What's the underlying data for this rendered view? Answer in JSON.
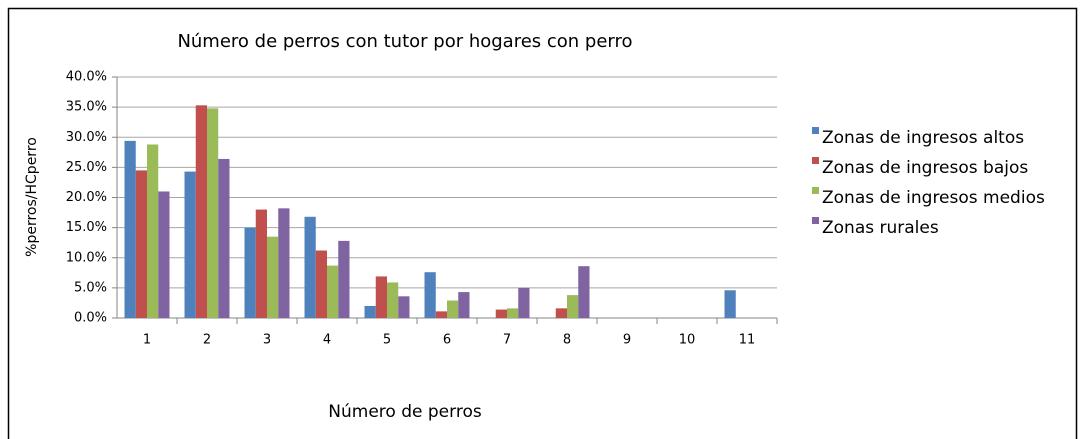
{
  "chart_data": {
    "type": "bar",
    "title": "Número de perros con tutor por hogares con perro",
    "x_label": "Número de perros",
    "y_label": "%perros/HCperro",
    "categories": [
      "1",
      "2",
      "3",
      "4",
      "5",
      "6",
      "7",
      "8",
      "9",
      "10",
      "11"
    ],
    "series": [
      {
        "name": "Zonas de ingresos altos",
        "color": "#4f81bd",
        "values": [
          29.4,
          24.3,
          15.0,
          16.8,
          2.0,
          7.6,
          0,
          0,
          0,
          0,
          4.6
        ]
      },
      {
        "name": "Zonas de ingresos bajos",
        "color": "#c0504d",
        "values": [
          24.5,
          35.3,
          18.0,
          11.2,
          6.9,
          1.1,
          1.4,
          1.6,
          0,
          0,
          0
        ]
      },
      {
        "name": "Zonas de ingresos medios",
        "color": "#9bbb59",
        "values": [
          28.8,
          34.8,
          13.5,
          8.7,
          5.9,
          2.9,
          1.6,
          3.8,
          0,
          0,
          0
        ]
      },
      {
        "name": "Zonas rurales",
        "color": "#8064a2",
        "values": [
          21.0,
          26.4,
          18.2,
          12.8,
          3.6,
          4.3,
          5.0,
          8.6,
          0,
          0,
          0
        ]
      }
    ],
    "ylim": [
      0,
      40
    ],
    "yticks": [
      {
        "value": 0,
        "label": "0.0%"
      },
      {
        "value": 5,
        "label": "5.0%"
      },
      {
        "value": 10,
        "label": "10.0%"
      },
      {
        "value": 15,
        "label": "15.0%"
      },
      {
        "value": 20,
        "label": "20.0%"
      },
      {
        "value": 25,
        "label": "25.0%"
      },
      {
        "value": 30,
        "label": "30.0%"
      },
      {
        "value": 35,
        "label": "35.0%"
      },
      {
        "value": 40,
        "label": "40.0%"
      }
    ],
    "grid": true,
    "legend": "right"
  }
}
